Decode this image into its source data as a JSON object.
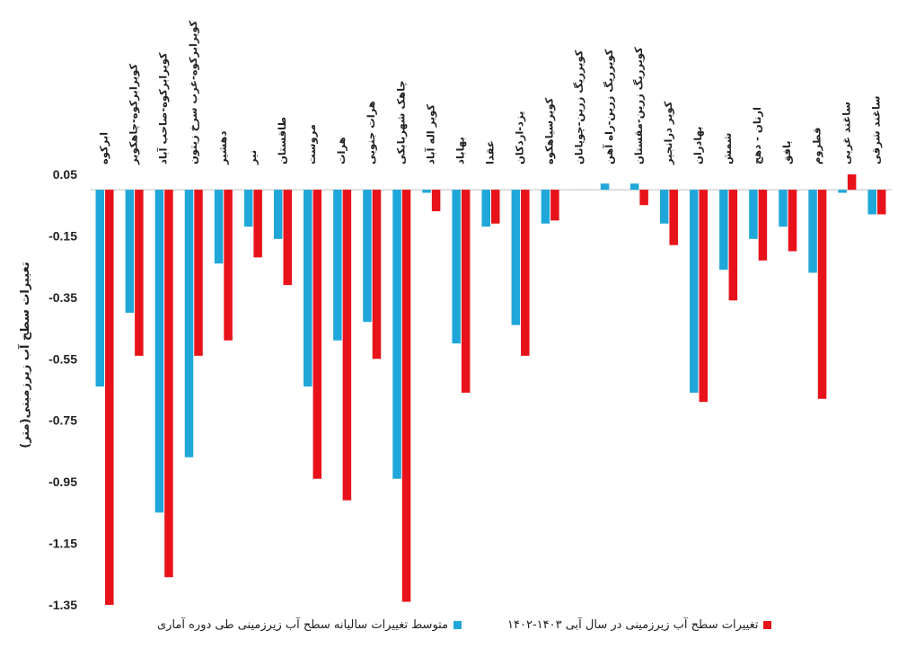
{
  "chart_data": {
    "type": "bar",
    "ylabel": "تغییرات سطح آب زیرزمینی(متر)",
    "ylim": [
      -1.35,
      0.05
    ],
    "yticks": [
      "0.05",
      "-0.15",
      "-0.35",
      "-0.55",
      "-0.75",
      "-0.95",
      "-1.15",
      "-1.35"
    ],
    "categories": [
      "ابرکوه",
      "کویرابرکوه-چاهکویر",
      "کویرابرکوه-صاحب آباد",
      "کویرابرکوه-غرب سرخ زیتون",
      "دهشیر",
      "نیر",
      "طاقستان",
      "مروست",
      "هرات",
      "هرات جنوبی",
      "چاهک شهربابکی",
      "کویر اله آباد",
      "بهاباد",
      "عقدا",
      "یزد-اردکان",
      "کویرسیاهکوه",
      "کویرریگ زرین-چوپانان",
      "کویرریگ زرین-راه آهن",
      "کویرریگ زرین-مقستان",
      "کویر درانجیر",
      "بهادران",
      "شمش",
      "ارنان - دهج",
      "بافق",
      "قطروم",
      "ساغند غربی",
      "ساغند شرقی"
    ],
    "series": [
      {
        "name": "متوسط تغییرات سالیانه سطح آب زیرزمینی طی دوره آماری",
        "color": "#1fa7d9",
        "values": [
          -0.64,
          -0.4,
          -1.05,
          -0.87,
          -0.24,
          -0.12,
          -0.16,
          -0.64,
          -0.49,
          -0.43,
          -0.94,
          -0.01,
          -0.5,
          -0.12,
          -0.44,
          -0.11,
          0.0,
          0.02,
          0.02,
          -0.11,
          -0.66,
          -0.26,
          -0.16,
          -0.12,
          -0.27,
          -0.01,
          -0.08
        ]
      },
      {
        "name": "تغییرات سطح آب زیرزمینی در سال آبی ۱۴۰۳-۱۴۰۲",
        "color": "#e8121a",
        "values": [
          -1.35,
          -0.54,
          -1.26,
          -0.54,
          -0.49,
          -0.22,
          -0.31,
          -0.94,
          -1.01,
          -0.55,
          -1.34,
          -0.07,
          -0.66,
          -0.11,
          -0.54,
          -0.1,
          0.0,
          0.0,
          -0.05,
          -0.18,
          -0.69,
          -0.36,
          -0.23,
          -0.2,
          -0.68,
          0.05,
          -0.08
        ]
      }
    ]
  },
  "legend": {
    "red_label": "تغییرات سطح آب زیرزمینی در سال آبی ۱۴۰۳-۱۴۰۲",
    "blue_label": "متوسط تغییرات سالیانه سطح آب زیرزمینی طی دوره آماری"
  }
}
